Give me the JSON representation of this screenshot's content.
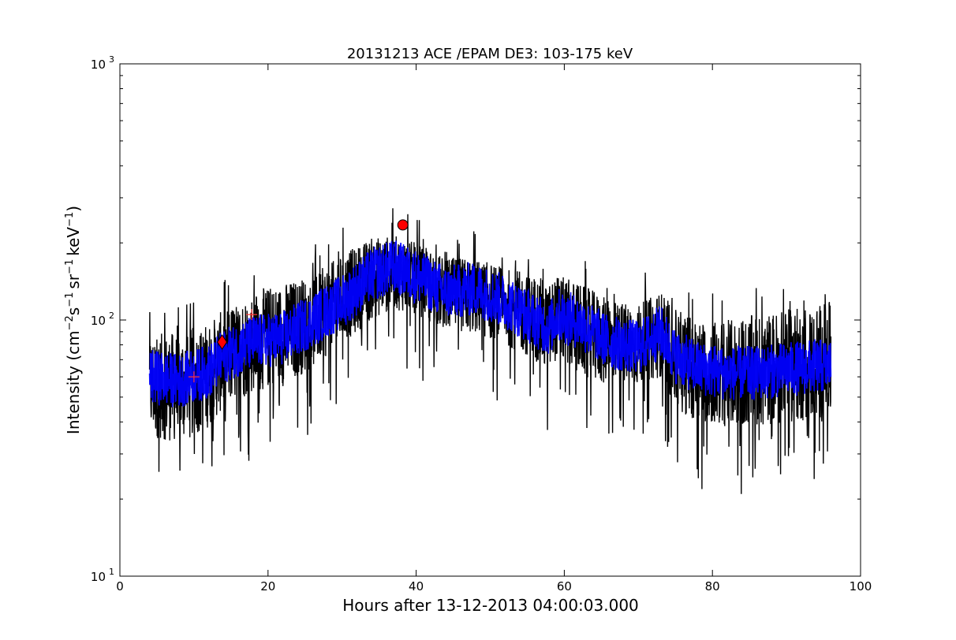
{
  "chart_data": {
    "type": "line",
    "title": "20131213 ACE /EPAM DE3: 103-175 keV",
    "xlabel": "Hours after 13-12-2013 04:00:03.000",
    "ylabel": {
      "prefix": "Intensity (cm",
      "exp1": "−2",
      "part2": "s",
      "exp2": "−1",
      "part3": "sr",
      "exp3": "−1",
      "part4": "keV",
      "exp4": "−1",
      "suffix": ")"
    },
    "xlim": [
      0,
      100
    ],
    "ylim": [
      10,
      1000
    ],
    "yscale": "log",
    "x_ticks": [
      0,
      20,
      40,
      60,
      80,
      100
    ],
    "y_ticks": [
      {
        "value": 10,
        "base": "10",
        "exp": "1"
      },
      {
        "value": 100,
        "base": "10",
        "exp": "2"
      },
      {
        "value": 1000,
        "base": "10",
        "exp": "3"
      }
    ],
    "grid": false,
    "series": [
      {
        "color": "#000000",
        "style": "noisy-raw",
        "x_range": [
          4.0,
          96.0
        ],
        "envelope_x": [
          4,
          8,
          12,
          14,
          18,
          22,
          26,
          30,
          34,
          37,
          40,
          44,
          48,
          52,
          56,
          58,
          59,
          62,
          66,
          70,
          73,
          75,
          78,
          82,
          86,
          90,
          94,
          96
        ],
        "envelope_low": [
          35,
          33,
          38,
          45,
          52,
          55,
          65,
          80,
          100,
          110,
          105,
          90,
          88,
          80,
          70,
          60,
          72,
          60,
          55,
          55,
          60,
          45,
          40,
          38,
          38,
          40,
          40,
          40
        ],
        "envelope_high": [
          88,
          90,
          98,
          110,
          130,
          140,
          150,
          180,
          210,
          215,
          200,
          175,
          175,
          160,
          150,
          140,
          150,
          140,
          120,
          115,
          130,
          110,
          100,
          100,
          105,
          110,
          115,
          118
        ]
      },
      {
        "color": "#0000ff",
        "style": "smoothed",
        "x": [
          4,
          8,
          12,
          14,
          18,
          22,
          26,
          30,
          34,
          37,
          40,
          44,
          48,
          52,
          56,
          58,
          59,
          62,
          66,
          70,
          73,
          75,
          78,
          82,
          86,
          90,
          94,
          96
        ],
        "y": [
          60,
          58,
          63,
          72,
          82,
          85,
          100,
          118,
          150,
          162,
          148,
          128,
          132,
          118,
          100,
          92,
          105,
          98,
          82,
          78,
          90,
          72,
          65,
          62,
          62,
          64,
          66,
          66
        ],
        "band_half_width_factor": 1.28
      }
    ],
    "markers": [
      {
        "x": 10.0,
        "y": 60,
        "shape": "plus",
        "color": "#ff3333"
      },
      {
        "x": 13.8,
        "y": 82,
        "shape": "diamond",
        "color": "#ff0000"
      },
      {
        "x": 17.8,
        "y": 105,
        "shape": "plus",
        "color": "#ff3333"
      },
      {
        "x": 38.2,
        "y": 235,
        "shape": "circle",
        "color": "#ff0000"
      }
    ]
  }
}
